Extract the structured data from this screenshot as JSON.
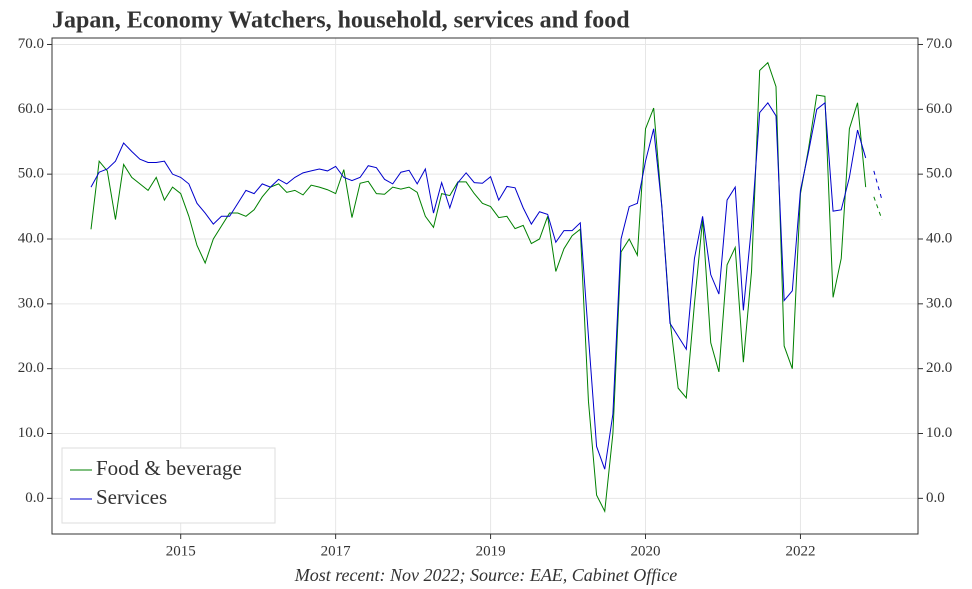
{
  "chart_data": {
    "type": "line",
    "title": "Japan, Economy Watchers, household, services and food",
    "footer": "Most recent: Nov 2022; Source: EAE, Cabinet Office",
    "categories": [
      null,
      null,
      null,
      null,
      null,
      null,
      null,
      null,
      null,
      null,
      null,
      "2015",
      null,
      null,
      null,
      null,
      null,
      null,
      null,
      null,
      null,
      null,
      null,
      null,
      null,
      null,
      null,
      null,
      null,
      null,
      "2017",
      null,
      null,
      null,
      null,
      null,
      null,
      null,
      null,
      null,
      null,
      null,
      null,
      null,
      null,
      null,
      null,
      null,
      null,
      "2019",
      null,
      null,
      null,
      null,
      null,
      null,
      null,
      null,
      null,
      null,
      null,
      null,
      null,
      null,
      null,
      null,
      null,
      null,
      "2020",
      null,
      null,
      null,
      null,
      null,
      null,
      null,
      null,
      null,
      null,
      null,
      null,
      null,
      null,
      null,
      null,
      null,
      null,
      "2022",
      null,
      null,
      null,
      null,
      null,
      null,
      null,
      null,
      null,
      null
    ],
    "series": [
      {
        "name": "Food & beverage",
        "color": "#008000",
        "values": [
          41.5,
          52,
          50.5,
          43,
          51.5,
          49.5,
          48.5,
          47.5,
          49.5,
          46,
          48,
          47,
          43.5,
          39,
          36.3,
          40,
          42,
          44,
          44,
          43.5,
          44.5,
          46.5,
          48,
          48.5,
          47.2,
          47.5,
          46.8,
          48.3,
          48,
          47.6,
          47,
          50.7,
          43.3,
          48.6,
          48.9,
          47,
          46.9,
          48,
          47.7,
          48,
          47.2,
          43.5,
          41.8,
          47,
          46.7,
          48.8,
          48.8,
          47,
          45.5,
          45,
          43.3,
          43.5,
          41.6,
          42.1,
          39.3,
          40,
          43.5,
          35,
          38.5,
          40.5,
          41.5,
          15,
          0.5,
          -2,
          10,
          38,
          40,
          37.5,
          57,
          60.2,
          45,
          27.5,
          17,
          15.5,
          30,
          43,
          24,
          19.5,
          36,
          38.7,
          21,
          35,
          66,
          67.2,
          63.5,
          23.5,
          20,
          47,
          54,
          62.2,
          62,
          31,
          37,
          57,
          61,
          48,
          null,
          null
        ],
        "forecast_values": [
          null,
          null,
          null,
          null,
          null,
          null,
          null,
          null,
          null,
          null,
          null,
          null,
          null,
          null,
          null,
          null,
          null,
          null,
          null,
          null,
          null,
          null,
          null,
          null,
          null,
          null,
          null,
          null,
          null,
          null,
          null,
          null,
          null,
          null,
          null,
          null,
          null,
          null,
          null,
          null,
          null,
          null,
          null,
          null,
          null,
          null,
          null,
          null,
          null,
          null,
          null,
          null,
          null,
          null,
          null,
          null,
          null,
          null,
          null,
          null,
          null,
          null,
          null,
          null,
          null,
          null,
          null,
          null,
          null,
          null,
          null,
          null,
          null,
          null,
          null,
          null,
          null,
          null,
          null,
          null,
          null,
          null,
          null,
          null,
          null,
          null,
          null,
          null,
          null,
          null,
          null,
          null,
          null,
          null,
          null,
          null,
          46.5,
          43
        ]
      },
      {
        "name": "Services",
        "color": "#0000cc",
        "values": [
          48,
          50.3,
          50.8,
          52,
          54.8,
          53.5,
          52.3,
          51.8,
          51.8,
          52,
          50,
          49.5,
          48.5,
          45.5,
          44,
          42.3,
          43.5,
          43.5,
          45.5,
          47.5,
          47,
          48.5,
          48,
          49.2,
          48.5,
          49.5,
          50.2,
          50.5,
          50.8,
          50.5,
          51.2,
          49.5,
          49,
          49.5,
          51.3,
          51,
          49.2,
          48.5,
          50.3,
          50.6,
          48.5,
          50.8,
          44,
          48.7,
          44.8,
          48.7,
          50.2,
          48.7,
          48.6,
          49.6,
          46,
          48.1,
          47.9,
          44.8,
          42.3,
          44.2,
          43.8,
          39.5,
          41.3,
          41.3,
          42.5,
          25,
          8,
          4.5,
          13,
          40,
          45,
          45.5,
          52,
          57,
          45,
          27,
          25,
          23,
          37,
          43.5,
          34.5,
          31.5,
          46,
          48,
          29,
          42,
          59.5,
          61,
          59,
          30.5,
          32,
          47.5,
          53.5,
          60,
          61,
          44.3,
          44.5,
          49.5,
          56.8,
          52.5,
          null,
          null
        ],
        "forecast_values": [
          null,
          null,
          null,
          null,
          null,
          null,
          null,
          null,
          null,
          null,
          null,
          null,
          null,
          null,
          null,
          null,
          null,
          null,
          null,
          null,
          null,
          null,
          null,
          null,
          null,
          null,
          null,
          null,
          null,
          null,
          null,
          null,
          null,
          null,
          null,
          null,
          null,
          null,
          null,
          null,
          null,
          null,
          null,
          null,
          null,
          null,
          null,
          null,
          null,
          null,
          null,
          null,
          null,
          null,
          null,
          null,
          null,
          null,
          null,
          null,
          null,
          null,
          null,
          null,
          null,
          null,
          null,
          null,
          null,
          null,
          null,
          null,
          null,
          null,
          null,
          null,
          null,
          null,
          null,
          null,
          null,
          null,
          null,
          null,
          null,
          null,
          null,
          null,
          null,
          null,
          null,
          null,
          null,
          null,
          null,
          null,
          50.5,
          46
        ]
      }
    ],
    "ylim": [
      -5.5,
      71
    ],
    "yticks": [
      {
        "value": 0,
        "label": "0.0"
      },
      {
        "value": 10,
        "label": "10.0"
      },
      {
        "value": 20,
        "label": "20.0"
      },
      {
        "value": 30,
        "label": "30.0"
      },
      {
        "value": 40,
        "label": "40.0"
      },
      {
        "value": 50,
        "label": "50.0"
      },
      {
        "value": 60,
        "label": "60.0"
      },
      {
        "value": 70,
        "label": "70.0"
      }
    ],
    "y2lim": [
      -5.5,
      71
    ],
    "y2ticks": [
      {
        "value": 0,
        "label": "0.0"
      },
      {
        "value": 10,
        "label": "10.0"
      },
      {
        "value": 20,
        "label": "20.0"
      },
      {
        "value": 30,
        "label": "30.0"
      },
      {
        "value": 40,
        "label": "40.0"
      },
      {
        "value": 50,
        "label": "50.0"
      },
      {
        "value": 60,
        "label": "60.0"
      },
      {
        "value": 70,
        "label": "70.0"
      }
    ],
    "grid": true,
    "legend": "lower left"
  }
}
